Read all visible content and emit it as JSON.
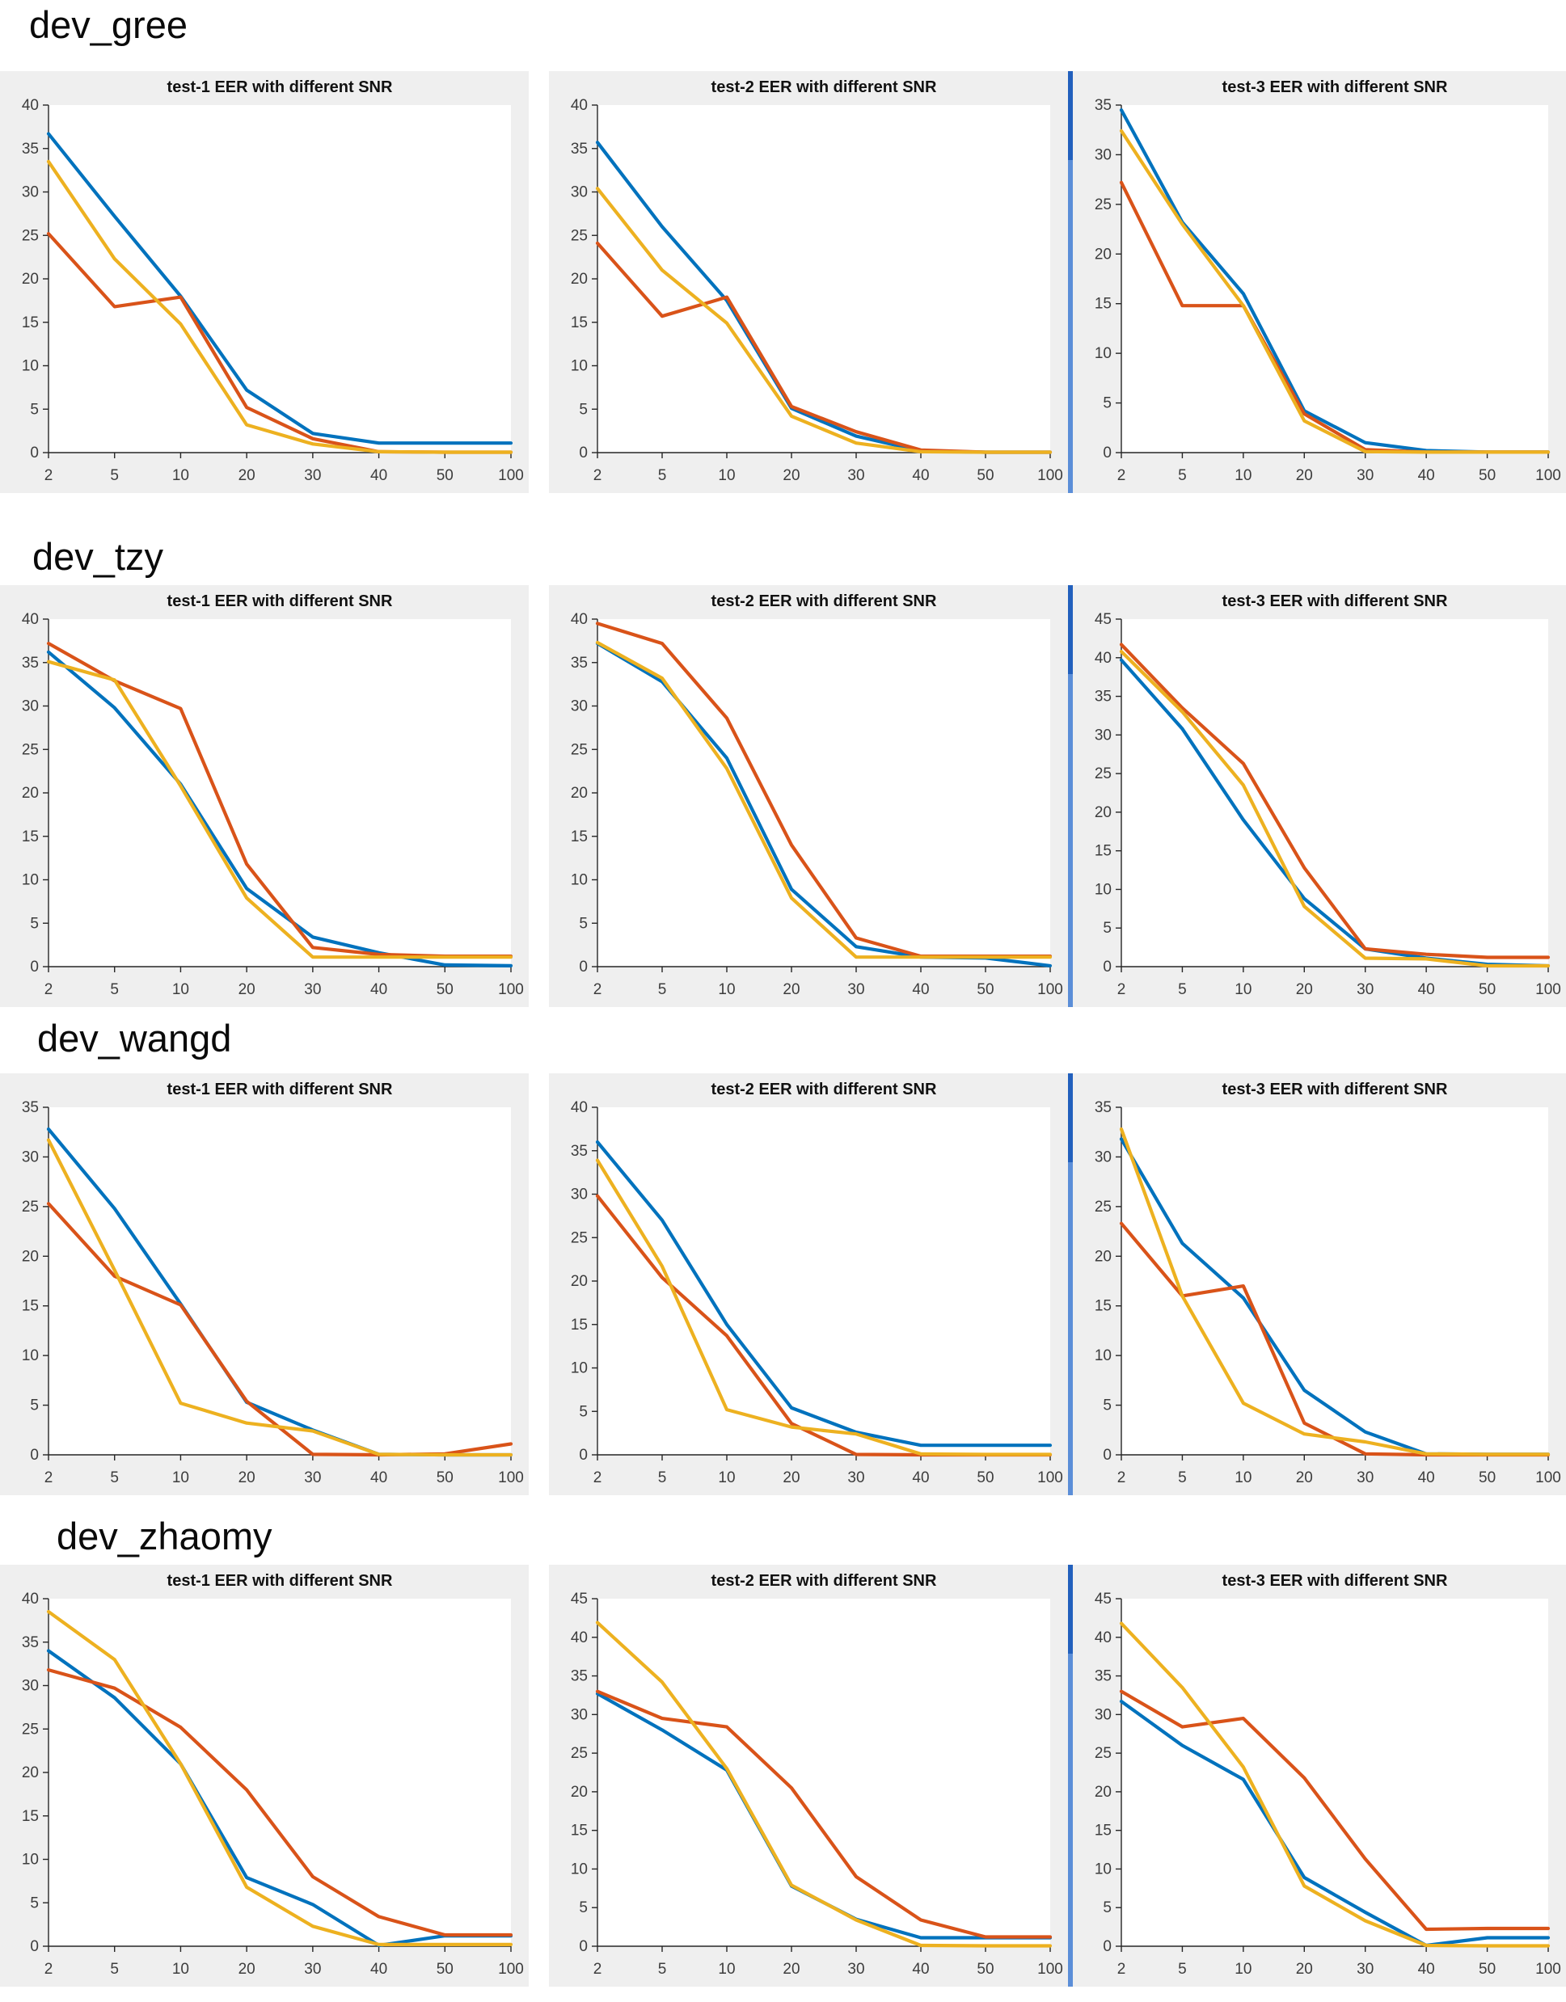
{
  "page": {
    "background": "#ffffff"
  },
  "styles": {
    "series_colors": {
      "blue": "#0072BD",
      "red": "#D95319",
      "yellow": "#EDB120"
    },
    "panel_background": "#efefef",
    "divider_color_top": "#2260bd",
    "divider_color_bottom": "#5b8ed8",
    "axis_color": "#262626",
    "tick_label_color": "#3d3d3d",
    "title_color": "#111111"
  },
  "x_tick_labels": [
    "2",
    "5",
    "10",
    "20",
    "30",
    "40",
    "50",
    "100"
  ],
  "chart_data": [
    {
      "row_label": "dev_gree",
      "charts": [
        {
          "type": "line",
          "title": "test-1 EER with different SNR",
          "xlabel": "",
          "ylabel": "",
          "ylim": [
            0,
            40
          ],
          "ytick_step": 5,
          "grid": false,
          "legend": "none",
          "x": [
            "2",
            "5",
            "10",
            "20",
            "30",
            "40",
            "50",
            "100"
          ],
          "series": [
            {
              "name": "blue",
              "color": "#0072BD",
              "values": [
                36.7,
                27.2,
                18.0,
                7.2,
                2.2,
                1.1,
                1.1,
                1.1
              ]
            },
            {
              "name": "red",
              "color": "#D95319",
              "values": [
                25.2,
                16.8,
                17.9,
                5.2,
                1.6,
                0.1,
                0.05,
                0.05
              ]
            },
            {
              "name": "yellow",
              "color": "#EDB120",
              "values": [
                33.5,
                22.3,
                14.8,
                3.2,
                1.0,
                0.1,
                0.05,
                0.05
              ]
            }
          ]
        },
        {
          "type": "line",
          "title": "test-2 EER with different SNR",
          "xlabel": "",
          "ylabel": "",
          "ylim": [
            0,
            40
          ],
          "ytick_step": 5,
          "grid": false,
          "legend": "none",
          "x": [
            "2",
            "5",
            "10",
            "20",
            "30",
            "40",
            "50",
            "100"
          ],
          "series": [
            {
              "name": "blue",
              "color": "#0072BD",
              "values": [
                35.7,
                26.0,
                17.5,
                5.1,
                1.9,
                0.2,
                0.05,
                0.05
              ]
            },
            {
              "name": "red",
              "color": "#D95319",
              "values": [
                24.1,
                15.7,
                17.9,
                5.3,
                2.4,
                0.3,
                0.05,
                0.05
              ]
            },
            {
              "name": "yellow",
              "color": "#EDB120",
              "values": [
                30.4,
                21.0,
                14.9,
                4.2,
                1.1,
                0.1,
                0.05,
                0.05
              ]
            }
          ]
        },
        {
          "type": "line",
          "title": "test-3 EER with different SNR",
          "xlabel": "",
          "ylabel": "",
          "ylim": [
            0,
            35
          ],
          "ytick_step": 5,
          "grid": false,
          "legend": "none",
          "x": [
            "2",
            "5",
            "10",
            "20",
            "30",
            "40",
            "50",
            "100"
          ],
          "series": [
            {
              "name": "blue",
              "color": "#0072BD",
              "values": [
                34.5,
                23.2,
                16.0,
                4.2,
                1.0,
                0.2,
                0.05,
                0.05
              ]
            },
            {
              "name": "red",
              "color": "#D95319",
              "values": [
                27.2,
                14.8,
                14.8,
                3.9,
                0.3,
                0.05,
                0.05,
                0.05
              ]
            },
            {
              "name": "yellow",
              "color": "#EDB120",
              "values": [
                32.4,
                23.0,
                14.8,
                3.2,
                0.1,
                0.05,
                0.05,
                0.05
              ]
            }
          ]
        }
      ]
    },
    {
      "row_label": "dev_tzy",
      "charts": [
        {
          "type": "line",
          "title": "test-1 EER with different SNR",
          "xlabel": "",
          "ylabel": "",
          "ylim": [
            0,
            40
          ],
          "ytick_step": 5,
          "grid": false,
          "legend": "none",
          "x": [
            "2",
            "5",
            "10",
            "20",
            "30",
            "40",
            "50",
            "100"
          ],
          "series": [
            {
              "name": "blue",
              "color": "#0072BD",
              "values": [
                36.2,
                29.8,
                21.0,
                9.0,
                3.4,
                1.6,
                0.2,
                0.1
              ]
            },
            {
              "name": "red",
              "color": "#D95319",
              "values": [
                37.2,
                32.9,
                29.7,
                11.8,
                2.2,
                1.4,
                1.2,
                1.2
              ]
            },
            {
              "name": "yellow",
              "color": "#EDB120",
              "values": [
                35.1,
                33.0,
                20.8,
                7.9,
                1.1,
                1.1,
                1.1,
                1.1
              ]
            }
          ]
        },
        {
          "type": "line",
          "title": "test-2 EER with different SNR",
          "xlabel": "",
          "ylabel": "",
          "ylim": [
            0,
            40
          ],
          "ytick_step": 5,
          "grid": false,
          "legend": "none",
          "x": [
            "2",
            "5",
            "10",
            "20",
            "30",
            "40",
            "50",
            "100"
          ],
          "series": [
            {
              "name": "blue",
              "color": "#0072BD",
              "values": [
                37.2,
                32.8,
                24.0,
                8.9,
                2.3,
                1.1,
                1.0,
                0.1
              ]
            },
            {
              "name": "red",
              "color": "#D95319",
              "values": [
                39.5,
                37.2,
                28.6,
                14.0,
                3.3,
                1.2,
                1.2,
                1.2
              ]
            },
            {
              "name": "yellow",
              "color": "#EDB120",
              "values": [
                37.3,
                33.2,
                22.8,
                7.9,
                1.1,
                1.1,
                1.1,
                1.1
              ]
            }
          ]
        },
        {
          "type": "line",
          "title": "test-3 EER with different SNR",
          "xlabel": "",
          "ylabel": "",
          "ylim": [
            0,
            45
          ],
          "ytick_step": 5,
          "grid": false,
          "legend": "none",
          "x": [
            "2",
            "5",
            "10",
            "20",
            "30",
            "40",
            "50",
            "100"
          ],
          "series": [
            {
              "name": "blue",
              "color": "#0072BD",
              "values": [
                39.7,
                30.8,
                19.0,
                8.8,
                2.3,
                1.1,
                0.3,
                0.1
              ]
            },
            {
              "name": "red",
              "color": "#D95319",
              "values": [
                41.7,
                33.5,
                26.3,
                12.8,
                2.3,
                1.6,
                1.2,
                1.2
              ]
            },
            {
              "name": "yellow",
              "color": "#EDB120",
              "values": [
                40.8,
                33.0,
                23.5,
                7.8,
                1.1,
                1.0,
                0.1,
                0.1
              ]
            }
          ]
        }
      ]
    },
    {
      "row_label": "dev_wangd",
      "charts": [
        {
          "type": "line",
          "title": "test-1 EER with different SNR",
          "xlabel": "",
          "ylabel": "",
          "ylim": [
            0,
            35
          ],
          "ytick_step": 5,
          "grid": false,
          "legend": "none",
          "x": [
            "2",
            "5",
            "10",
            "20",
            "30",
            "40",
            "50",
            "100"
          ],
          "series": [
            {
              "name": "blue",
              "color": "#0072BD",
              "values": [
                32.8,
                24.8,
                15.2,
                5.3,
                2.5,
                0.05,
                0.0,
                0.0
              ]
            },
            {
              "name": "red",
              "color": "#D95319",
              "values": [
                25.3,
                18.0,
                15.1,
                5.4,
                0.05,
                0.0,
                0.1,
                1.1
              ]
            },
            {
              "name": "yellow",
              "color": "#EDB120",
              "values": [
                31.7,
                18.6,
                5.2,
                3.2,
                2.4,
                0.05,
                0.0,
                0.0
              ]
            }
          ]
        },
        {
          "type": "line",
          "title": "test-2 EER with different SNR",
          "xlabel": "",
          "ylabel": "",
          "ylim": [
            0,
            40
          ],
          "ytick_step": 5,
          "grid": false,
          "legend": "none",
          "x": [
            "2",
            "5",
            "10",
            "20",
            "30",
            "40",
            "50",
            "100"
          ],
          "series": [
            {
              "name": "blue",
              "color": "#0072BD",
              "values": [
                36.0,
                27.0,
                15.0,
                5.4,
                2.6,
                1.1,
                1.1,
                1.1
              ]
            },
            {
              "name": "red",
              "color": "#D95319",
              "values": [
                29.8,
                20.4,
                13.7,
                3.6,
                0.05,
                0.0,
                0.0,
                0.0
              ]
            },
            {
              "name": "yellow",
              "color": "#EDB120",
              "values": [
                33.9,
                21.7,
                5.2,
                3.2,
                2.4,
                0.1,
                0.05,
                0.05
              ]
            }
          ]
        },
        {
          "type": "line",
          "title": "test-3 EER with different SNR",
          "xlabel": "",
          "ylabel": "",
          "ylim": [
            0,
            35
          ],
          "ytick_step": 5,
          "grid": false,
          "legend": "none",
          "x": [
            "2",
            "5",
            "10",
            "20",
            "30",
            "40",
            "50",
            "100"
          ],
          "series": [
            {
              "name": "blue",
              "color": "#0072BD",
              "values": [
                31.8,
                21.3,
                15.8,
                6.5,
                2.3,
                0.1,
                0.05,
                0.05
              ]
            },
            {
              "name": "red",
              "color": "#D95319",
              "values": [
                23.3,
                16.0,
                17.0,
                3.2,
                0.1,
                0.0,
                0.0,
                0.0
              ]
            },
            {
              "name": "yellow",
              "color": "#EDB120",
              "values": [
                32.8,
                16.0,
                5.2,
                2.1,
                1.3,
                0.1,
                0.05,
                0.05
              ]
            }
          ]
        }
      ]
    },
    {
      "row_label": "dev_zhaomy",
      "charts": [
        {
          "type": "line",
          "title": "test-1 EER with different SNR",
          "xlabel": "",
          "ylabel": "",
          "ylim": [
            0,
            40
          ],
          "ytick_step": 5,
          "grid": false,
          "legend": "none",
          "x": [
            "2",
            "5",
            "10",
            "20",
            "30",
            "40",
            "50",
            "100"
          ],
          "series": [
            {
              "name": "blue",
              "color": "#0072BD",
              "values": [
                34.0,
                28.6,
                21.0,
                7.9,
                4.8,
                0.1,
                1.2,
                1.2
              ]
            },
            {
              "name": "red",
              "color": "#D95319",
              "values": [
                31.8,
                29.7,
                25.2,
                18.0,
                8.0,
                3.4,
                1.3,
                1.3
              ]
            },
            {
              "name": "yellow",
              "color": "#EDB120",
              "values": [
                38.5,
                33.0,
                21.0,
                6.8,
                2.3,
                0.2,
                0.2,
                0.2
              ]
            }
          ]
        },
        {
          "type": "line",
          "title": "test-2 EER with different SNR",
          "xlabel": "",
          "ylabel": "",
          "ylim": [
            0,
            45
          ],
          "ytick_step": 5,
          "grid": false,
          "legend": "none",
          "x": [
            "2",
            "5",
            "10",
            "20",
            "30",
            "40",
            "50",
            "100"
          ],
          "series": [
            {
              "name": "blue",
              "color": "#0072BD",
              "values": [
                32.7,
                28.0,
                22.8,
                7.8,
                3.5,
                1.1,
                1.1,
                1.1
              ]
            },
            {
              "name": "red",
              "color": "#D95319",
              "values": [
                33.0,
                29.5,
                28.4,
                20.5,
                9.0,
                3.4,
                1.2,
                1.2
              ]
            },
            {
              "name": "yellow",
              "color": "#EDB120",
              "values": [
                41.9,
                34.2,
                23.0,
                7.9,
                3.4,
                0.1,
                0.05,
                0.05
              ]
            }
          ]
        },
        {
          "type": "line",
          "title": "test-3 EER with different SNR",
          "xlabel": "",
          "ylabel": "",
          "ylim": [
            0,
            45
          ],
          "ytick_step": 5,
          "grid": false,
          "legend": "none",
          "x": [
            "2",
            "5",
            "10",
            "20",
            "30",
            "40",
            "50",
            "100"
          ],
          "series": [
            {
              "name": "blue",
              "color": "#0072BD",
              "values": [
                31.7,
                26.0,
                21.6,
                8.9,
                4.4,
                0.1,
                1.1,
                1.1
              ]
            },
            {
              "name": "red",
              "color": "#D95319",
              "values": [
                33.0,
                28.4,
                29.5,
                21.8,
                11.3,
                2.2,
                2.3,
                2.3
              ]
            },
            {
              "name": "yellow",
              "color": "#EDB120",
              "values": [
                41.8,
                33.5,
                23.2,
                7.8,
                3.3,
                0.1,
                0.05,
                0.05
              ]
            }
          ]
        }
      ]
    }
  ]
}
